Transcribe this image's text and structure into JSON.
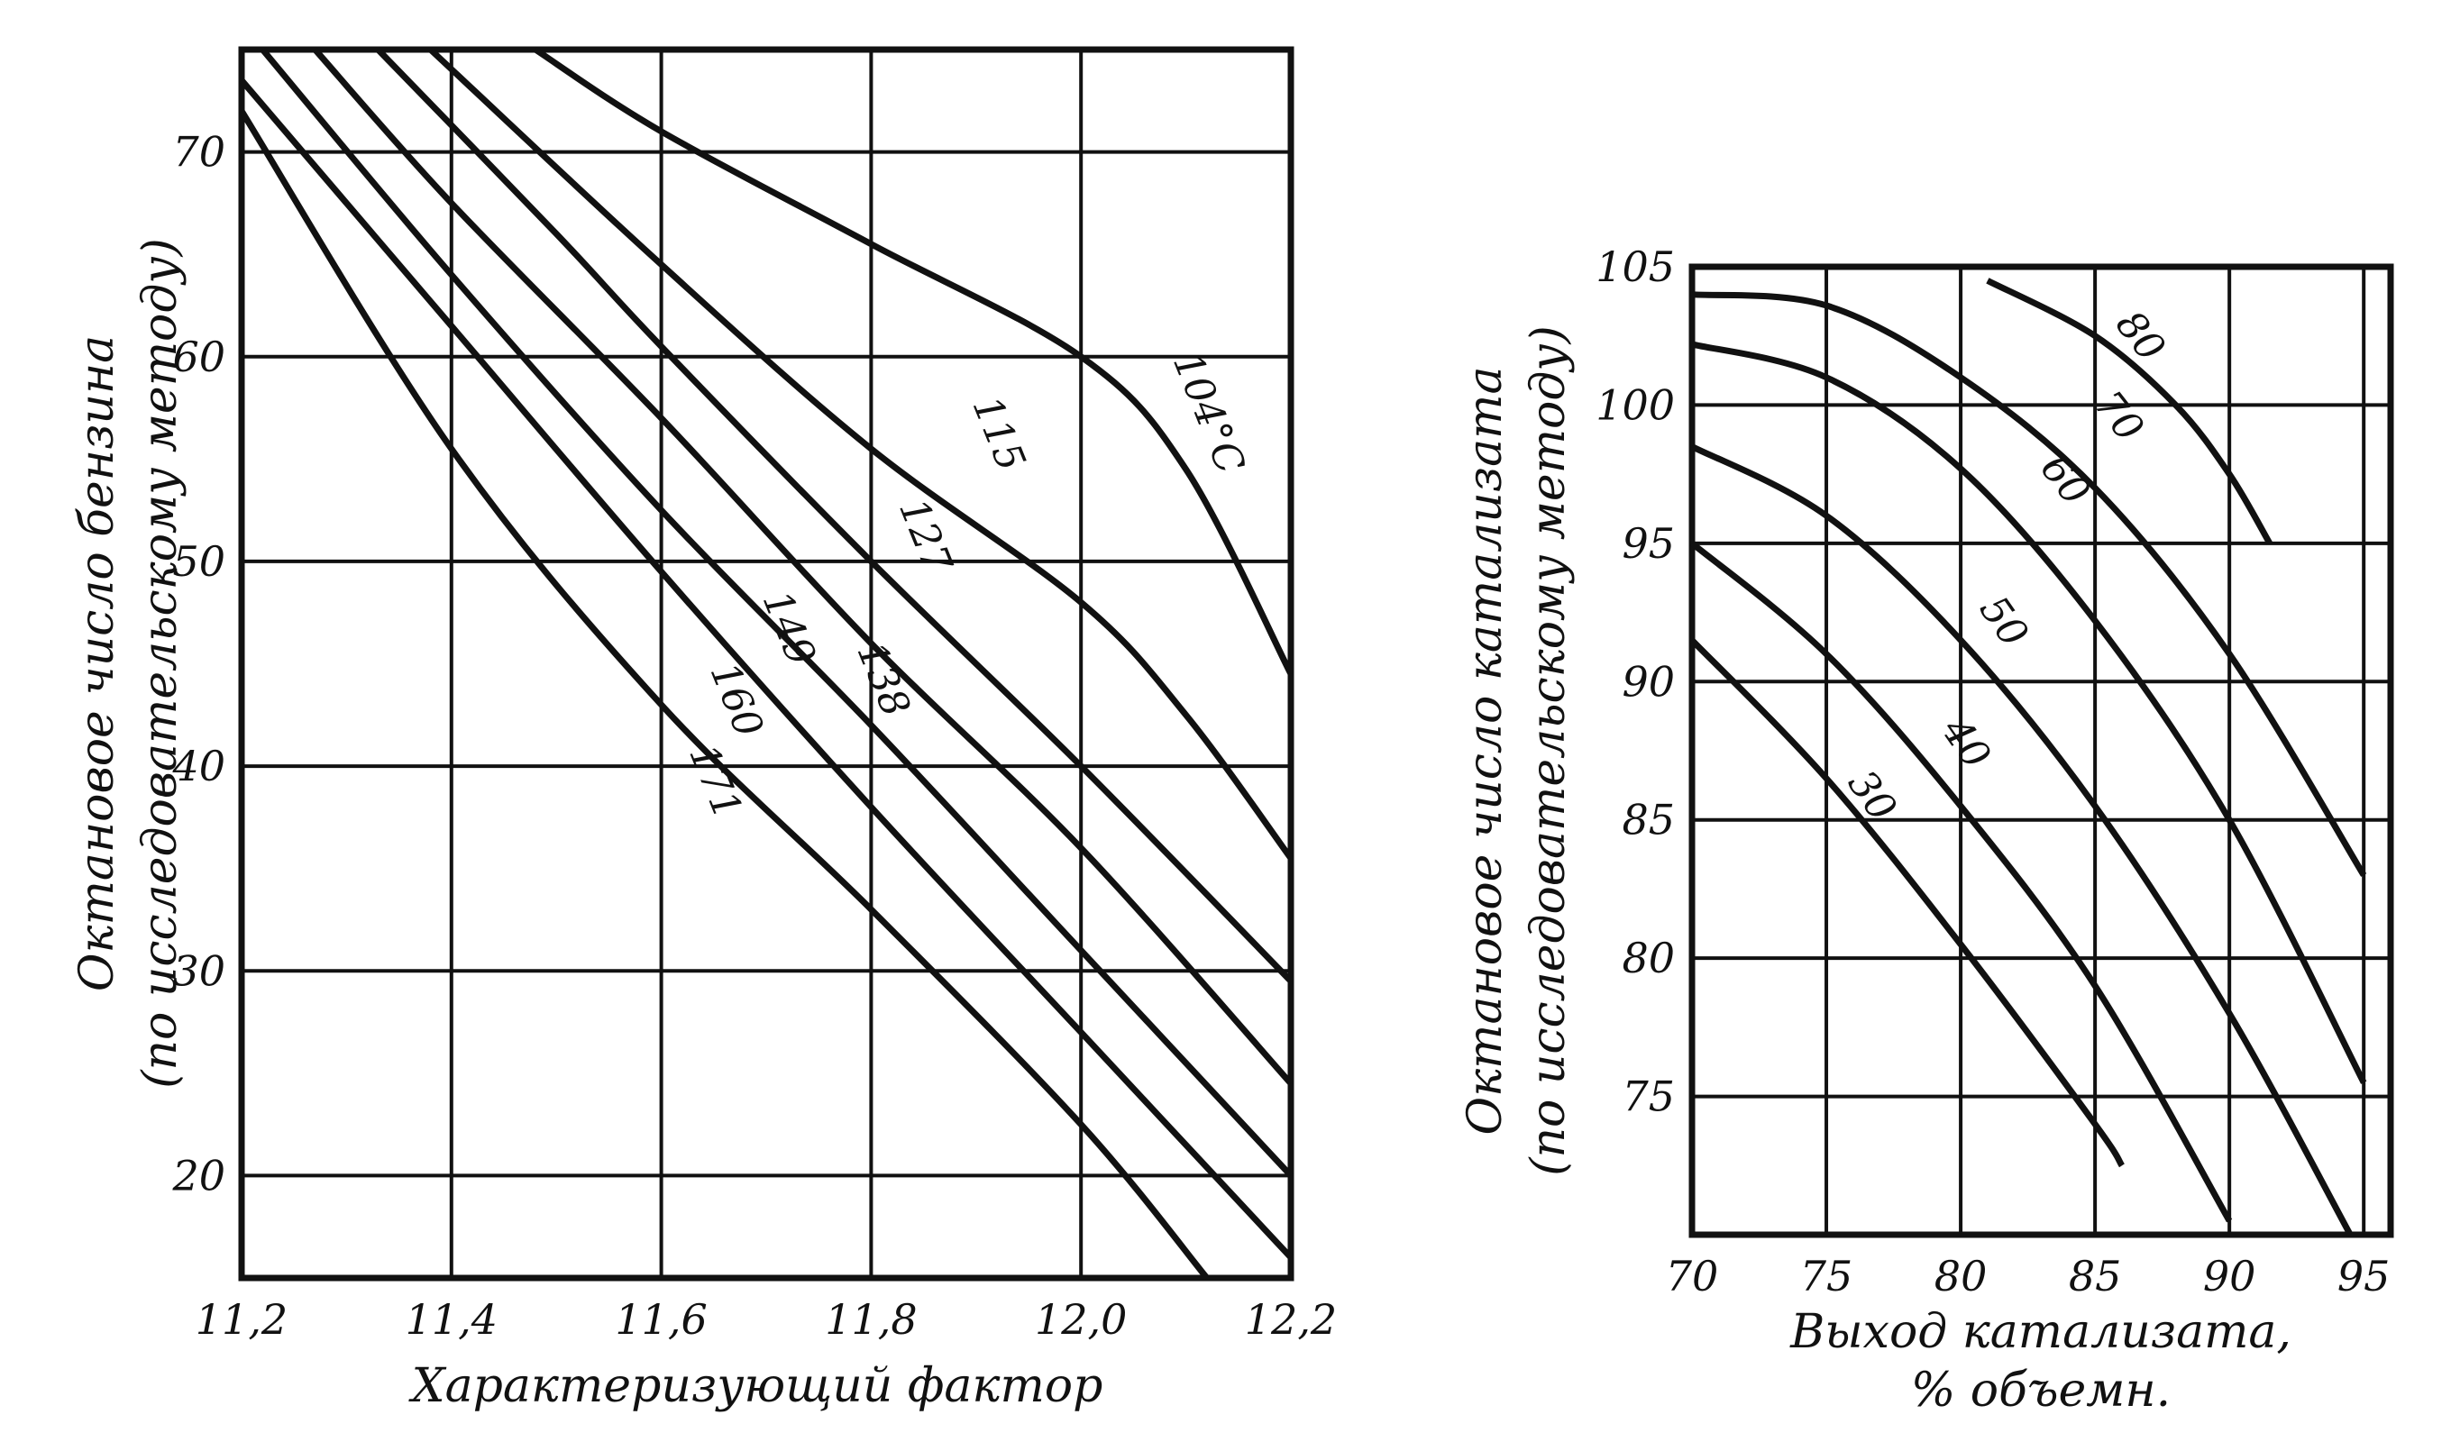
{
  "chart_data": [
    {
      "type": "line",
      "xlabel": "Характеризующий фактор",
      "ylabel": "Октановое число бензина",
      "ylabel_sub": "(по исследовательскому методу)",
      "xlim": [
        11.2,
        12.2
      ],
      "ylim": [
        15,
        75
      ],
      "x_ticks": [
        11.2,
        11.4,
        11.6,
        11.8,
        12.0,
        12.2
      ],
      "x_tick_labels": [
        "11,2",
        "11,4",
        "11,6",
        "11,8",
        "12,0",
        "12,2"
      ],
      "y_ticks": [
        20,
        30,
        40,
        50,
        60,
        70
      ],
      "y_tick_labels": [
        "20",
        "30",
        "40",
        "50",
        "60",
        "70"
      ],
      "grid": true,
      "series": [
        {
          "name": "104°C",
          "label_at": [
            12.11,
            57
          ],
          "label_rot": 68,
          "points": [
            [
              11.48,
              75
            ],
            [
              11.6,
              71
            ],
            [
              11.8,
              65.5
            ],
            [
              12.0,
              60
            ],
            [
              12.1,
              54.5
            ],
            [
              12.2,
              44.5
            ]
          ]
        },
        {
          "name": "115",
          "label_at": [
            11.91,
            56
          ],
          "label_rot": 68,
          "points": [
            [
              11.38,
              75
            ],
            [
              11.6,
              64.5
            ],
            [
              11.8,
              55.5
            ],
            [
              12.0,
              48
            ],
            [
              12.1,
              42.5
            ],
            [
              12.2,
              35.5
            ]
          ]
        },
        {
          "name": "127",
          "label_at": [
            11.84,
            51
          ],
          "label_rot": 68,
          "points": [
            [
              11.33,
              75
            ],
            [
              11.5,
              66
            ],
            [
              11.6,
              60.5
            ],
            [
              11.8,
              50
            ],
            [
              12.0,
              40
            ],
            [
              12.2,
              29.5
            ]
          ]
        },
        {
          "name": "138",
          "label_at": [
            11.8,
            44
          ],
          "label_rot": 68,
          "points": [
            [
              11.27,
              75
            ],
            [
              11.4,
              67.5
            ],
            [
              11.6,
              57
            ],
            [
              11.8,
              46
            ],
            [
              12.0,
              36
            ],
            [
              12.2,
              24.5
            ]
          ]
        },
        {
          "name": "149",
          "label_at": [
            11.71,
            46.5
          ],
          "label_rot": 68,
          "points": [
            [
              11.22,
              75
            ],
            [
              11.4,
              64
            ],
            [
              11.6,
              52.5
            ],
            [
              11.8,
              42
            ],
            [
              12.0,
              31
            ],
            [
              12.2,
              20
            ]
          ]
        },
        {
          "name": "160",
          "label_at": [
            11.66,
            43
          ],
          "label_rot": 68,
          "points": [
            [
              11.2,
              73.5
            ],
            [
              11.4,
              61.5
            ],
            [
              11.6,
              49.5
            ],
            [
              11.8,
              38
            ],
            [
              12.0,
              27
            ],
            [
              12.2,
              16
            ]
          ]
        },
        {
          "name": "171",
          "label_at": [
            11.64,
            39
          ],
          "label_rot": 68,
          "points": [
            [
              11.2,
              72
            ],
            [
              11.4,
              55.5
            ],
            [
              11.6,
              43
            ],
            [
              11.8,
              33
            ],
            [
              12.0,
              22.5
            ],
            [
              12.12,
              15
            ]
          ]
        }
      ]
    },
    {
      "type": "line",
      "xlabel": "Выход катализата,",
      "xlabel_sub": "% объемн.",
      "ylabel": "Октановое число катализата",
      "ylabel_sub": "(по исследовательскому методу)",
      "xlim": [
        70,
        96
      ],
      "ylim": [
        70,
        105
      ],
      "x_ticks": [
        70,
        75,
        80,
        85,
        90,
        95
      ],
      "x_tick_labels": [
        "70",
        "75",
        "80",
        "85",
        "90",
        "95"
      ],
      "y_ticks": [
        75,
        80,
        85,
        90,
        95,
        100,
        105
      ],
      "y_tick_labels": [
        "75",
        "80",
        "85",
        "90",
        "95",
        "100",
        "105"
      ],
      "grid": true,
      "series": [
        {
          "name": "80",
          "label_at": [
            86.3,
            102.2
          ],
          "label_rot": 52,
          "points": [
            [
              81,
              104.5
            ],
            [
              85,
              102.5
            ],
            [
              88,
              100
            ],
            [
              90,
              97.5
            ],
            [
              91.5,
              95
            ]
          ]
        },
        {
          "name": "70",
          "label_at": [
            85.5,
            99.3
          ],
          "label_rot": 52,
          "points": [
            [
              70,
              104
            ],
            [
              75,
              103.6
            ],
            [
              80,
              101
            ],
            [
              85,
              97
            ],
            [
              90,
              91
            ],
            [
              95,
              83
            ]
          ]
        },
        {
          "name": "60",
          "label_at": [
            83.5,
            97
          ],
          "label_rot": 52,
          "points": [
            [
              70,
              102.2
            ],
            [
              75,
              101
            ],
            [
              80,
              97.7
            ],
            [
              85,
              92.2
            ],
            [
              90,
              85
            ],
            [
              95,
              75.5
            ]
          ]
        },
        {
          "name": "50",
          "label_at": [
            81.2,
            91.9
          ],
          "label_rot": 55,
          "points": [
            [
              70,
              98.5
            ],
            [
              75,
              96
            ],
            [
              80,
              91.5
            ],
            [
              85,
              85.5
            ],
            [
              90,
              78
            ],
            [
              94.5,
              70
            ]
          ]
        },
        {
          "name": "40",
          "label_at": [
            79.8,
            87.5
          ],
          "label_rot": 55,
          "points": [
            [
              70,
              95
            ],
            [
              75,
              91
            ],
            [
              80,
              85.5
            ],
            [
              85,
              79
            ],
            [
              90,
              70.5
            ]
          ]
        },
        {
          "name": "30",
          "label_at": [
            76.3,
            85.6
          ],
          "label_rot": 55,
          "points": [
            [
              70,
              91.5
            ],
            [
              75,
              86.5
            ],
            [
              80,
              80.5
            ],
            [
              85,
              74
            ],
            [
              86,
              72.5
            ]
          ]
        }
      ]
    }
  ]
}
